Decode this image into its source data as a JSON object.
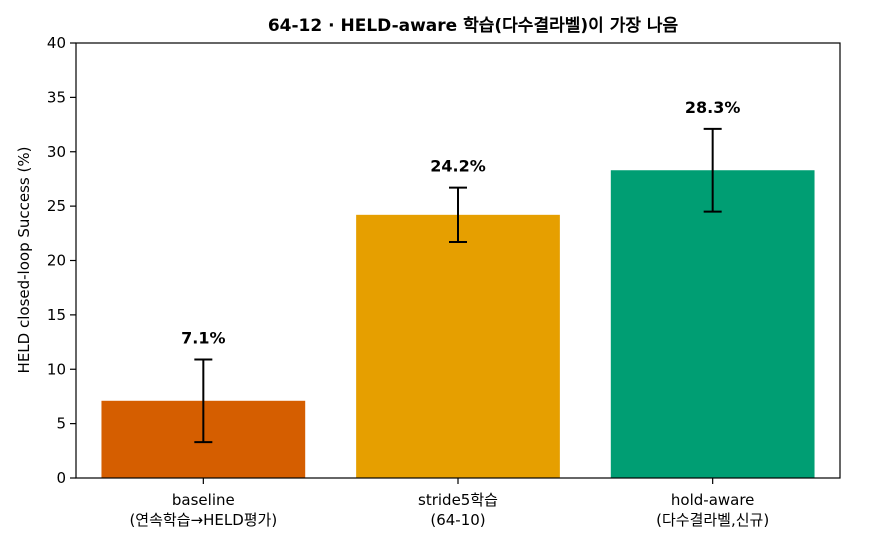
{
  "chart_data": {
    "type": "bar",
    "title": "64-12 · HELD-aware 학습(다수결라벨)이 가장 나음",
    "xlabel": "",
    "ylabel": "HELD closed-loop Success (%)",
    "ylim": [
      0,
      40
    ],
    "yticks": [
      0,
      5,
      10,
      15,
      20,
      25,
      30,
      35,
      40
    ],
    "grid": false,
    "categories": [
      [
        "baseline",
        "(연속학습→HELD평가)"
      ],
      [
        "stride5학습",
        "(64-10)"
      ],
      [
        "hold-aware",
        "(다수결라벨,신규)"
      ]
    ],
    "values": [
      7.1,
      24.2,
      28.3
    ],
    "value_labels": [
      "7.1%",
      "24.2%",
      "28.3%"
    ],
    "error_low": [
      3.3,
      21.7,
      24.5
    ],
    "error_high": [
      10.9,
      26.7,
      32.1
    ],
    "colors": [
      "#d55e00",
      "#e69f00",
      "#009e73"
    ]
  }
}
